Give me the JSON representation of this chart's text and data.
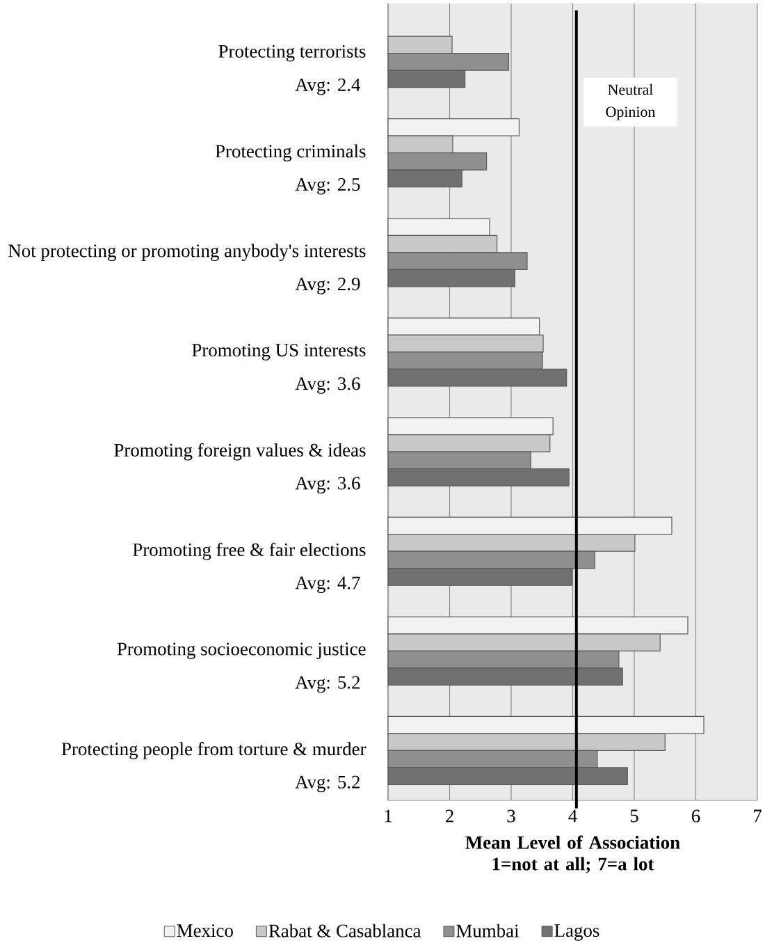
{
  "chart_data": {
    "type": "bar",
    "orientation": "horizontal",
    "categories": [
      "Protecting terrorists",
      "Protecting criminals",
      "Not protecting or promoting anybody's interests",
      "Promoting US interests",
      "Promoting foreign values & ideas",
      "Promoting free & fair elections",
      "Promoting socioeconomic justice",
      "Protecting people from torture & murder"
    ],
    "series": [
      {
        "name": "Mexico",
        "color": "#f2f2f2",
        "values": [
          null,
          3.13,
          2.65,
          3.46,
          3.68,
          5.61,
          5.87,
          6.13
        ]
      },
      {
        "name": "Rabat & Casablanca",
        "color": "#c8c8c8",
        "values": [
          2.04,
          2.05,
          2.77,
          3.52,
          3.63,
          5.01,
          5.42,
          5.5
        ]
      },
      {
        "name": "Mumbai",
        "color": "#8f8f8f",
        "values": [
          2.96,
          2.6,
          3.26,
          3.51,
          3.32,
          4.36,
          4.75,
          4.4
        ]
      },
      {
        "name": "Lagos",
        "color": "#717171",
        "values": [
          2.25,
          2.2,
          3.06,
          3.9,
          3.94,
          3.99,
          4.81,
          4.89
        ]
      }
    ],
    "annotations": [
      "Avg: 2.4",
      "Avg: 2.5",
      "Avg: 2.9",
      "Avg: 3.6",
      "Avg: 3.6",
      "Avg: 4.7",
      "Avg: 5.2",
      "Avg: 5.2"
    ],
    "xlabel": "Mean Level of Association 1=not at all; 7=a lot",
    "xlim": [
      1,
      7
    ],
    "xticks": [
      1,
      2,
      3,
      4,
      5,
      6,
      7
    ],
    "ref_lines": [
      {
        "axis": "x",
        "value": 4.06,
        "label": "Neutral Opinion",
        "color": "#000000"
      }
    ],
    "grid": "x",
    "legend": "bottom"
  }
}
